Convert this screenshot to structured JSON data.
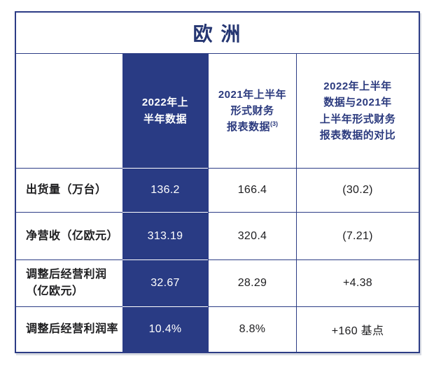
{
  "colors": {
    "highlight_navy": "#293b84",
    "grid_border_navy": "#2c3c85",
    "title_text_navy": "#253672",
    "header_text_navy": "#2b3a7e",
    "body_text": "#1d1d1f",
    "divider_over_highlight": "#ffffff"
  },
  "table": {
    "title": "欧 洲",
    "header": {
      "col1": "",
      "col2": "2022年上\n半年数据",
      "col3": "2021年上半年\n形式财务\n报表数据",
      "col3_superscript": "(3)",
      "col4": "2022年上半年\n数据与2021年\n上半年形式财务\n报表数据的对比"
    },
    "rows": [
      {
        "label": "出货量（万台）",
        "h1_2022": "136.2",
        "h1_2021": "166.4",
        "delta": "(30.2)"
      },
      {
        "label": "净营收（亿欧元）",
        "h1_2022": "313.19",
        "h1_2021": "320.4",
        "delta": "(7.21)"
      },
      {
        "label": "调整后经营利润\n（亿欧元）",
        "h1_2022": "32.67",
        "h1_2021": "28.29",
        "delta": "+4.38"
      },
      {
        "label": "调整后经营利润率",
        "h1_2022": "10.4%",
        "h1_2021": "8.8%",
        "delta": "+160 基点"
      }
    ]
  },
  "chart_data": {
    "type": "table",
    "title": "欧 洲",
    "columns": [
      "",
      "2022年上半年数据",
      "2021年上半年形式财务报表数据(3)",
      "2022年上半年数据与2021年上半年形式财务报表数据的对比"
    ],
    "highlighted_column": "2022年上半年数据",
    "rows": [
      [
        "出货量（万台）",
        "136.2",
        "166.4",
        "(30.2)"
      ],
      [
        "净营收（亿欧元）",
        "313.19",
        "320.4",
        "(7.21)"
      ],
      [
        "调整后经营利润（亿欧元）",
        "32.67",
        "28.29",
        "+4.38"
      ],
      [
        "调整后经营利润率",
        "10.4%",
        "8.8%",
        "+160 基点"
      ]
    ]
  }
}
